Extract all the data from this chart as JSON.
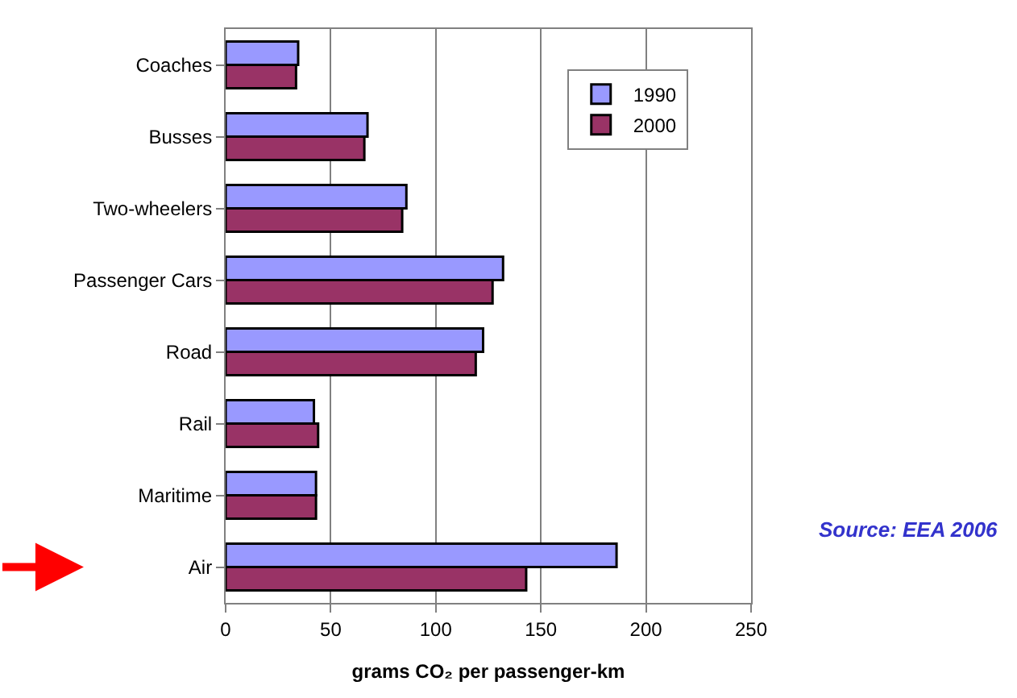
{
  "chart_data": {
    "type": "bar",
    "orientation": "horizontal",
    "categories": [
      "Coaches",
      "Busses",
      "Two-wheelers",
      "Passenger Cars",
      "Road",
      "Rail",
      "Maritime",
      "Air"
    ],
    "series": [
      {
        "name": "1990",
        "color": "#9999ff",
        "values": [
          34.5,
          67.5,
          86,
          132,
          122.5,
          42,
          43,
          186
        ]
      },
      {
        "name": "2000",
        "color": "#993366",
        "values": [
          33.5,
          66,
          84,
          127,
          119,
          44,
          43,
          143
        ]
      }
    ],
    "xlim": [
      0,
      250
    ],
    "xticks": [
      0,
      50,
      100,
      150,
      200,
      250
    ],
    "xlabel": "grams CO₂ per passenger-km",
    "grid": "x",
    "legend": "top right",
    "annotations": [
      "Source: EEA 2006"
    ]
  }
}
